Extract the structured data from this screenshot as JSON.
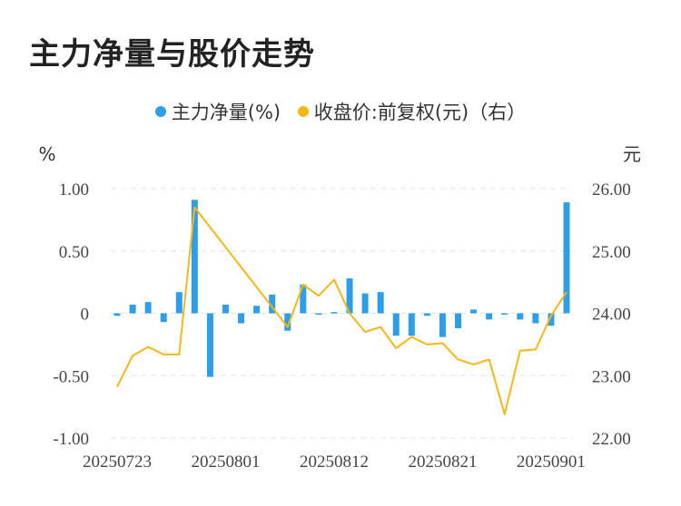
{
  "title": "主力净量与股价走势",
  "colors": {
    "bar": "#2e9ee8",
    "line": "#f5b718",
    "grid": "#e3e3e3"
  },
  "chart_data": {
    "type": "bar+line",
    "legend": [
      {
        "name": "主力净量(%)",
        "color": "#2e9ee8"
      },
      {
        "name": "收盘价:前复权(元)（右）",
        "color": "#f5b718"
      }
    ],
    "left_unit": "%",
    "right_unit": "元",
    "left_ylim": [
      -1.0,
      1.0
    ],
    "right_ylim": [
      22.0,
      26.0
    ],
    "left_ticks": [
      "1.00",
      "0.50",
      "0",
      "-0.50",
      "-1.00"
    ],
    "right_ticks": [
      "26.00",
      "25.00",
      "24.00",
      "23.00",
      "22.00"
    ],
    "x_tick_labels": [
      {
        "index": 0,
        "label": "20250723"
      },
      {
        "index": 7,
        "label": "20250801"
      },
      {
        "index": 14,
        "label": "20250812"
      },
      {
        "index": 21,
        "label": "20250821"
      },
      {
        "index": 28,
        "label": "20250901"
      }
    ],
    "bars": [
      -0.02,
      0.07,
      0.09,
      -0.07,
      0.17,
      0.91,
      -0.51,
      0.07,
      -0.08,
      0.06,
      0.15,
      -0.14,
      0.23,
      0.0,
      0.01,
      0.28,
      0.16,
      0.17,
      -0.18,
      -0.18,
      -0.02,
      -0.19,
      -0.12,
      0.03,
      -0.05,
      -0.01,
      -0.05,
      -0.08,
      -0.1,
      0.89
    ],
    "line": [
      22.82,
      23.32,
      23.46,
      23.34,
      23.34,
      25.7,
      null,
      null,
      null,
      null,
      null,
      23.78,
      24.46,
      24.28,
      24.54,
      24.0,
      23.7,
      23.78,
      23.44,
      23.62,
      23.5,
      23.52,
      23.26,
      23.18,
      23.26,
      22.38,
      23.4,
      23.42,
      23.96,
      24.34
    ]
  }
}
